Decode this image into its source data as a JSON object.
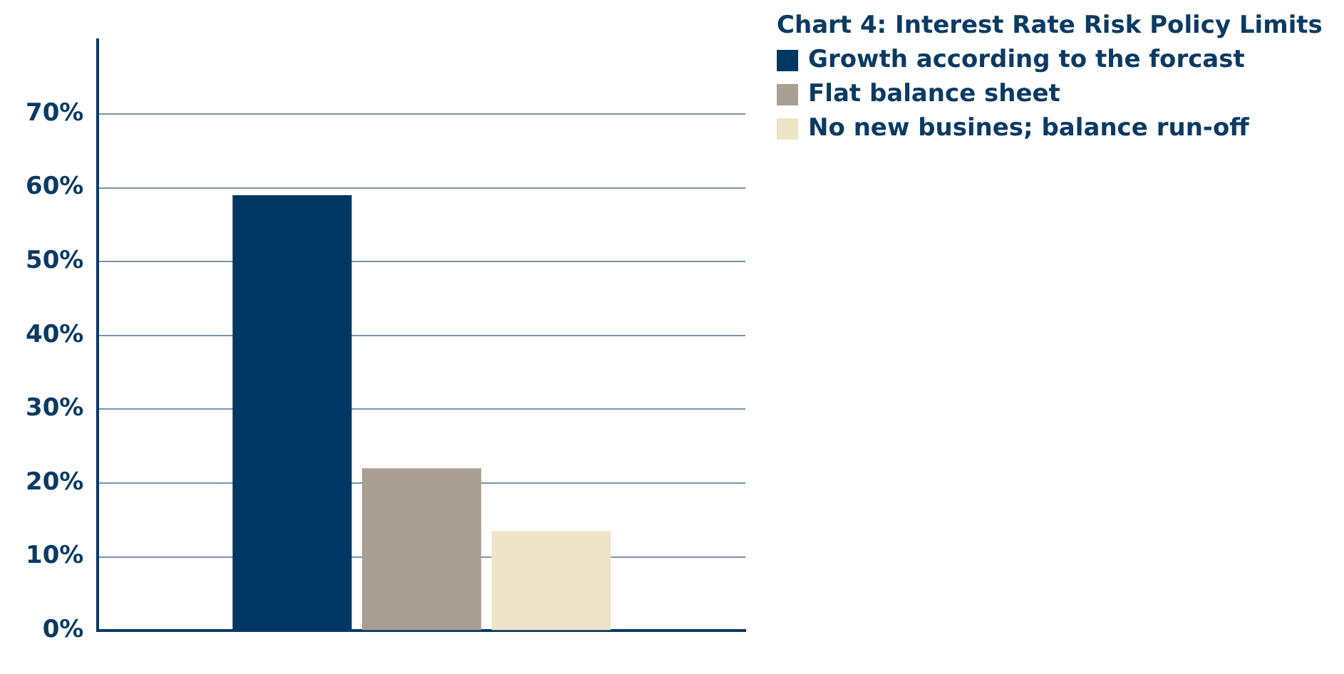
{
  "chart_data": {
    "type": "bar",
    "title": "Chart 4: Interest Rate Risk Policy Limits",
    "categories": [
      null
    ],
    "series": [
      {
        "name": "Growth according to the forcast",
        "color": "#003865",
        "values": [
          59
        ]
      },
      {
        "name": "Flat balance sheet",
        "color": "#a89e92",
        "values": [
          22
        ]
      },
      {
        "name": "No new busines; balance run-off",
        "color": "#efe3c8",
        "values": [
          13.5
        ]
      }
    ],
    "ylim": [
      0,
      80
    ],
    "yticks": [
      {
        "value": 0,
        "label": "0%"
      },
      {
        "value": 10,
        "label": "10%"
      },
      {
        "value": 20,
        "label": "20%"
      },
      {
        "value": 30,
        "label": "30%"
      },
      {
        "value": 40,
        "label": "40%"
      },
      {
        "value": 50,
        "label": "50%"
      },
      {
        "value": 60,
        "label": "60%"
      },
      {
        "value": 70,
        "label": "70%"
      }
    ],
    "grid": "y",
    "legend": "right"
  }
}
